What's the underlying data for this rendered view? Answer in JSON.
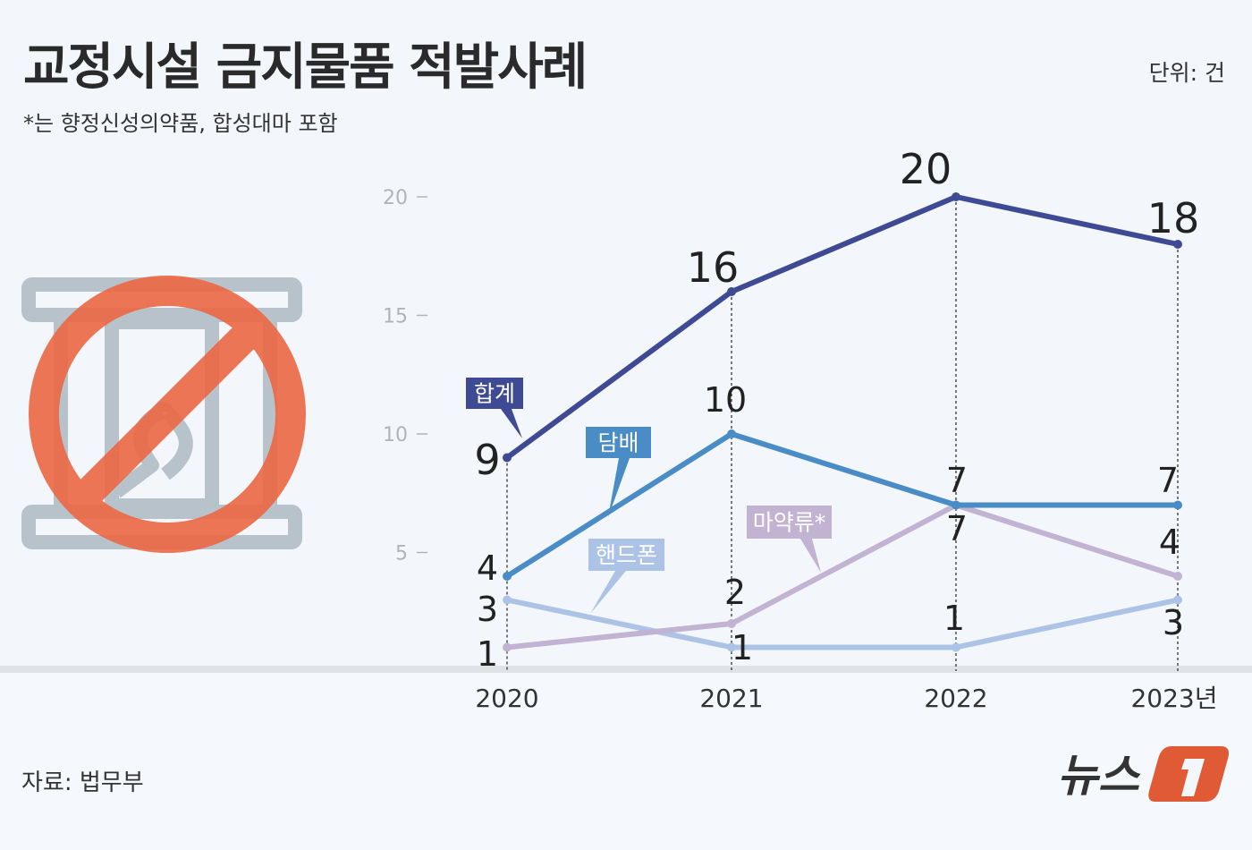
{
  "header": {
    "title": "교정시설 금지물품 적발사례",
    "subtitle": "*는 향정신성의약품, 합성대마 포함",
    "unit": "단위: 건"
  },
  "footer": {
    "source": "자료: 법무부",
    "logo_text": "뉴스1"
  },
  "icon": "prohibited-prison-icon",
  "colors": {
    "background": "#f3f7fb",
    "prohibit_red": "#ec6a47",
    "icon_gray": "#b7c2cb"
  },
  "chart_data": {
    "type": "line",
    "title": "교정시설 금지물품 적발사례",
    "unit": "단위: 건",
    "categories": [
      "2020",
      "2021",
      "2022",
      "2023년"
    ],
    "y_ticks": [
      "20",
      "15",
      "10",
      "5"
    ],
    "ylim": [
      0,
      20
    ],
    "grid": false,
    "legend": "inline-callouts",
    "series": [
      {
        "name": "합계",
        "color": "#3f4a94",
        "values": [
          9,
          16,
          20,
          18
        ]
      },
      {
        "name": "담배",
        "color": "#4a8cc6",
        "values": [
          4,
          10,
          7,
          7
        ]
      },
      {
        "name": "마약류*",
        "color": "#c3b3d3",
        "values": [
          1,
          2,
          7,
          4
        ]
      },
      {
        "name": "핸드폰",
        "color": "#adc3e5",
        "values": [
          3,
          1,
          1,
          3
        ]
      }
    ]
  }
}
